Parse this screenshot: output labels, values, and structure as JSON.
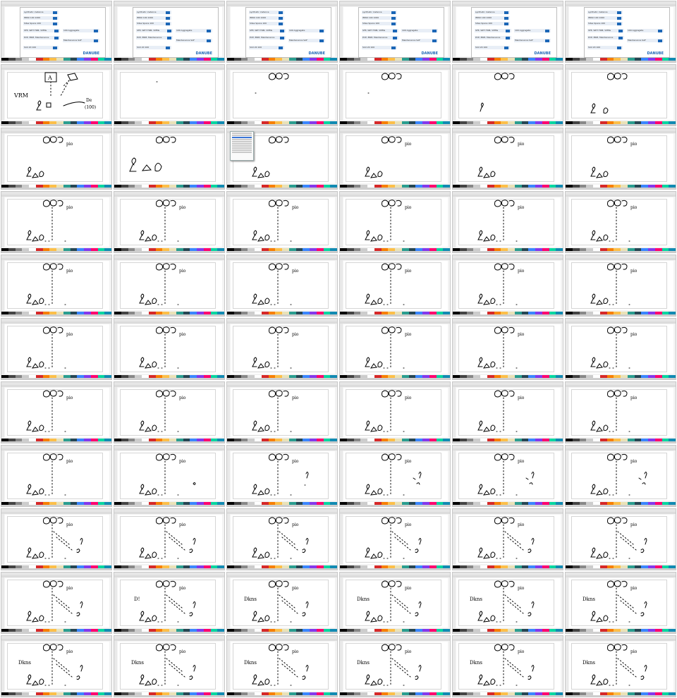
{
  "screenshot": {
    "grid_columns": 6,
    "grid_rows": 11
  },
  "colors": {
    "ink": "#000000",
    "accent": "#1b66b6",
    "palette": [
      "#000000",
      "#444444",
      "#888888",
      "#cccccc",
      "#ffffff",
      "#d62828",
      "#f77f00",
      "#fcbf49",
      "#eae2b7",
      "#2a9d8f",
      "#264653",
      "#3a86ff",
      "#8338ec",
      "#ff006e",
      "#06d6a0",
      "#118ab2"
    ]
  },
  "document_preview": {
    "brand": "DANUBE",
    "lines": [
      "synthetic instance",
      "IMNU 100 1000",
      "Sites Spans 100",
      "SFE, WPT FRM, VMMs",
      "PVP, ERM, Maintenance",
      "100 Aggregate",
      "Maintenance SAF",
      "Slot 20 100"
    ]
  },
  "handwriting": {
    "vrm": "VRM",
    "a_box": "A",
    "dc_label": "De",
    "dc_sub": "(100)",
    "p_io": "pio",
    "dkns": "Dkns",
    "ds_short": "D!"
  },
  "tiles": [
    {
      "r": 0,
      "c": 0,
      "kind": "doc"
    },
    {
      "r": 0,
      "c": 1,
      "kind": "doc"
    },
    {
      "r": 0,
      "c": 2,
      "kind": "doc"
    },
    {
      "r": 0,
      "c": 3,
      "kind": "doc"
    },
    {
      "r": 0,
      "c": 4,
      "kind": "doc"
    },
    {
      "r": 0,
      "c": 5,
      "kind": "doc"
    },
    {
      "r": 1,
      "c": 0,
      "stage": "sketch"
    },
    {
      "r": 1,
      "c": 1,
      "stage": "empty"
    },
    {
      "r": 1,
      "c": 2,
      "stage": "top"
    },
    {
      "r": 1,
      "c": 3,
      "stage": "top"
    },
    {
      "r": 1,
      "c": 4,
      "stage": "top_left"
    },
    {
      "r": 1,
      "c": 5,
      "stage": "top_left2"
    },
    {
      "r": 2,
      "c": 0,
      "stage": "b"
    },
    {
      "r": 2,
      "c": 1,
      "stage": "big_left"
    },
    {
      "r": 2,
      "c": 2,
      "stage": "menu"
    },
    {
      "r": 2,
      "c": 3,
      "stage": "b"
    },
    {
      "r": 2,
      "c": 4,
      "stage": "b"
    },
    {
      "r": 2,
      "c": 5,
      "stage": "b"
    },
    {
      "r": 3,
      "c": 0,
      "stage": "c"
    },
    {
      "r": 3,
      "c": 1,
      "stage": "c"
    },
    {
      "r": 3,
      "c": 2,
      "stage": "c"
    },
    {
      "r": 3,
      "c": 3,
      "stage": "c"
    },
    {
      "r": 3,
      "c": 4,
      "stage": "c"
    },
    {
      "r": 3,
      "c": 5,
      "stage": "c"
    },
    {
      "r": 4,
      "c": 0,
      "stage": "c"
    },
    {
      "r": 4,
      "c": 1,
      "stage": "c"
    },
    {
      "r": 4,
      "c": 2,
      "stage": "c"
    },
    {
      "r": 4,
      "c": 3,
      "stage": "c"
    },
    {
      "r": 4,
      "c": 4,
      "stage": "c"
    },
    {
      "r": 4,
      "c": 5,
      "stage": "c"
    },
    {
      "r": 5,
      "c": 0,
      "stage": "c"
    },
    {
      "r": 5,
      "c": 1,
      "stage": "c"
    },
    {
      "r": 5,
      "c": 2,
      "stage": "c"
    },
    {
      "r": 5,
      "c": 3,
      "stage": "c"
    },
    {
      "r": 5,
      "c": 4,
      "stage": "c"
    },
    {
      "r": 5,
      "c": 5,
      "stage": "c"
    },
    {
      "r": 6,
      "c": 0,
      "stage": "c"
    },
    {
      "r": 6,
      "c": 1,
      "stage": "c"
    },
    {
      "r": 6,
      "c": 2,
      "stage": "c"
    },
    {
      "r": 6,
      "c": 3,
      "stage": "c"
    },
    {
      "r": 6,
      "c": 4,
      "stage": "c"
    },
    {
      "r": 6,
      "c": 5,
      "stage": "c"
    },
    {
      "r": 7,
      "c": 0,
      "stage": "c"
    },
    {
      "r": 7,
      "c": 1,
      "stage": "c1"
    },
    {
      "r": 7,
      "c": 2,
      "stage": "c2"
    },
    {
      "r": 7,
      "c": 3,
      "stage": "c3"
    },
    {
      "r": 7,
      "c": 4,
      "stage": "c3"
    },
    {
      "r": 7,
      "c": 5,
      "stage": "c3"
    },
    {
      "r": 8,
      "c": 0,
      "stage": "d"
    },
    {
      "r": 8,
      "c": 1,
      "stage": "d"
    },
    {
      "r": 8,
      "c": 2,
      "stage": "d"
    },
    {
      "r": 8,
      "c": 3,
      "stage": "d"
    },
    {
      "r": 8,
      "c": 4,
      "stage": "d"
    },
    {
      "r": 8,
      "c": 5,
      "stage": "d"
    },
    {
      "r": 9,
      "c": 0,
      "stage": "d"
    },
    {
      "r": 9,
      "c": 1,
      "stage": "d_d"
    },
    {
      "r": 9,
      "c": 2,
      "stage": "d_dkns"
    },
    {
      "r": 9,
      "c": 3,
      "stage": "d_dkns"
    },
    {
      "r": 9,
      "c": 4,
      "stage": "d_dkns"
    },
    {
      "r": 9,
      "c": 5,
      "stage": "d_dkns"
    },
    {
      "r": 10,
      "c": 0,
      "stage": "d_dkns"
    },
    {
      "r": 10,
      "c": 1,
      "stage": "d_dkns"
    },
    {
      "r": 10,
      "c": 2,
      "stage": "d_dkns"
    },
    {
      "r": 10,
      "c": 3,
      "stage": "d_dkns"
    },
    {
      "r": 10,
      "c": 4,
      "stage": "d_dkns"
    },
    {
      "r": 10,
      "c": 5,
      "stage": "d_dkns"
    }
  ]
}
